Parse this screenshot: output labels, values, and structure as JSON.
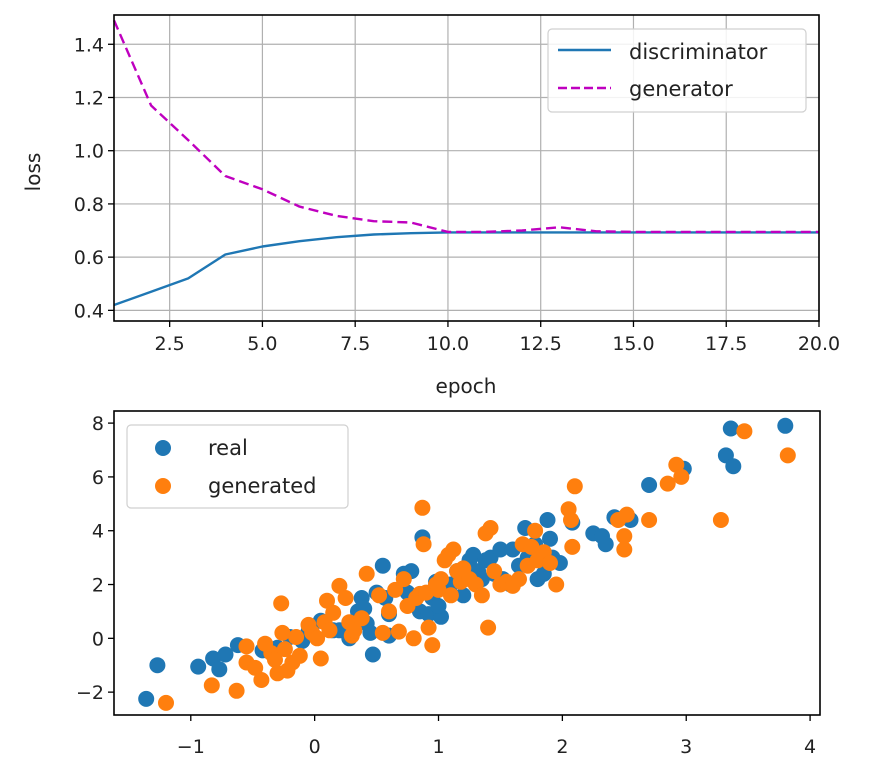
{
  "chart_data": [
    {
      "type": "line",
      "title": "",
      "xlabel": "epoch",
      "ylabel": "loss",
      "xlim": [
        1,
        20
      ],
      "ylim": [
        0.36,
        1.51
      ],
      "grid": true,
      "legend_position": "top-right",
      "x_ticks": [
        2.5,
        5.0,
        7.5,
        10.0,
        12.5,
        15.0,
        17.5,
        20.0
      ],
      "x_tick_labels": [
        "2.5",
        "5.0",
        "7.5",
        "10.0",
        "12.5",
        "15.0",
        "17.5",
        "20.0"
      ],
      "y_ticks": [
        0.4,
        0.6,
        0.8,
        1.0,
        1.2,
        1.4
      ],
      "y_tick_labels": [
        "0.4",
        "0.6",
        "0.8",
        "1.0",
        "1.2",
        "1.4"
      ],
      "x": [
        1,
        2,
        3,
        4,
        5,
        6,
        7,
        8,
        9,
        10,
        11,
        12,
        13,
        14,
        15,
        16,
        17,
        18,
        19,
        20
      ],
      "series": [
        {
          "name": "discriminator",
          "color": "#1f77b4",
          "style": "solid",
          "values": [
            0.42,
            0.47,
            0.52,
            0.61,
            0.64,
            0.66,
            0.675,
            0.685,
            0.69,
            0.693,
            0.693,
            0.693,
            0.693,
            0.693,
            0.693,
            0.693,
            0.693,
            0.693,
            0.693,
            0.693
          ]
        },
        {
          "name": "generator",
          "color": "#bf00bf",
          "style": "dashed",
          "values": [
            1.49,
            1.17,
            1.04,
            0.905,
            0.855,
            0.79,
            0.755,
            0.735,
            0.73,
            0.695,
            0.695,
            0.7,
            0.712,
            0.697,
            0.695,
            0.695,
            0.695,
            0.695,
            0.695,
            0.695
          ]
        }
      ]
    },
    {
      "type": "scatter",
      "title": "",
      "xlabel": "",
      "ylabel": "",
      "xlim": [
        -1.62,
        4.08
      ],
      "ylim": [
        -2.85,
        8.45
      ],
      "grid": false,
      "legend_position": "top-left",
      "x_ticks": [
        -1,
        0,
        1,
        2,
        3,
        4
      ],
      "x_tick_labels": [
        "−1",
        "0",
        "1",
        "2",
        "3",
        "4"
      ],
      "y_ticks": [
        -2,
        0,
        2,
        4,
        6,
        8
      ],
      "y_tick_labels": [
        "−2",
        "0",
        "2",
        "4",
        "6",
        "8"
      ],
      "series": [
        {
          "name": "real",
          "color": "#1f77b4",
          "points": [
            [
              -1.36,
              -2.25
            ],
            [
              -1.27,
              -1.0
            ],
            [
              -0.94,
              -1.05
            ],
            [
              -0.82,
              -0.75
            ],
            [
              -0.77,
              -1.15
            ],
            [
              -0.72,
              -0.6
            ],
            [
              -0.62,
              -0.25
            ],
            [
              -0.42,
              -0.45
            ],
            [
              -0.3,
              -0.35
            ],
            [
              -0.2,
              0.05
            ],
            [
              -0.05,
              0.25
            ],
            [
              0.05,
              0.65
            ],
            [
              0.15,
              0.3
            ],
            [
              0.28,
              0.0
            ],
            [
              0.35,
              1.0
            ],
            [
              0.38,
              1.5
            ],
            [
              0.4,
              1.1
            ],
            [
              0.42,
              0.55
            ],
            [
              0.45,
              0.2
            ],
            [
              0.47,
              -0.6
            ],
            [
              0.55,
              2.7
            ],
            [
              0.57,
              1.5
            ],
            [
              0.6,
              0.9
            ],
            [
              0.72,
              2.4
            ],
            [
              0.75,
              1.7
            ],
            [
              0.78,
              2.5
            ],
            [
              0.85,
              1.0
            ],
            [
              0.87,
              3.75
            ],
            [
              0.92,
              0.9
            ],
            [
              0.95,
              1.5
            ],
            [
              0.98,
              2.1
            ],
            [
              1.02,
              0.8
            ],
            [
              1.05,
              1.9
            ],
            [
              1.1,
              2.0
            ],
            [
              1.15,
              2.5
            ],
            [
              1.2,
              1.6
            ],
            [
              1.25,
              2.9
            ],
            [
              1.28,
              3.1
            ],
            [
              1.32,
              2.5
            ],
            [
              1.35,
              2.2
            ],
            [
              1.38,
              2.9
            ],
            [
              1.42,
              3.0
            ],
            [
              1.45,
              2.4
            ],
            [
              1.5,
              3.3
            ],
            [
              1.52,
              2.2
            ],
            [
              1.58,
              2.0
            ],
            [
              1.65,
              2.7
            ],
            [
              1.7,
              4.1
            ],
            [
              1.72,
              3.0
            ],
            [
              1.78,
              3.5
            ],
            [
              1.8,
              2.2
            ],
            [
              1.85,
              2.4
            ],
            [
              1.88,
              4.4
            ],
            [
              1.9,
              3.7
            ],
            [
              1.92,
              3.0
            ],
            [
              1.98,
              2.8
            ],
            [
              2.08,
              4.3
            ],
            [
              2.25,
              3.9
            ],
            [
              2.32,
              3.8
            ],
            [
              2.35,
              3.5
            ],
            [
              2.42,
              4.5
            ],
            [
              2.55,
              4.4
            ],
            [
              2.7,
              5.7
            ],
            [
              2.98,
              6.3
            ],
            [
              3.32,
              6.8
            ],
            [
              3.36,
              7.8
            ],
            [
              3.38,
              6.4
            ],
            [
              3.8,
              7.9
            ],
            [
              0.2,
              0.3
            ],
            [
              0.6,
              0.1
            ],
            [
              -0.1,
              -0.1
            ],
            [
              1.0,
              1.2
            ],
            [
              1.3,
              2.1
            ],
            [
              0.5,
              1.7
            ],
            [
              1.6,
              3.3
            ]
          ]
        },
        {
          "name": "generated",
          "color": "#ff7f0e",
          "points": [
            [
              -1.2,
              -2.4
            ],
            [
              -0.83,
              -1.75
            ],
            [
              -0.63,
              -1.95
            ],
            [
              -0.55,
              -0.3
            ],
            [
              -0.55,
              -0.9
            ],
            [
              -0.48,
              -1.1
            ],
            [
              -0.43,
              -1.55
            ],
            [
              -0.35,
              -0.55
            ],
            [
              -0.32,
              -0.8
            ],
            [
              -0.3,
              -1.3
            ],
            [
              -0.27,
              1.3
            ],
            [
              -0.26,
              0.2
            ],
            [
              -0.24,
              -0.4
            ],
            [
              -0.22,
              -1.2
            ],
            [
              -0.18,
              -0.9
            ],
            [
              -0.15,
              0.05
            ],
            [
              -0.12,
              -0.65
            ],
            [
              -0.05,
              0.5
            ],
            [
              -0.02,
              0.2
            ],
            [
              0.02,
              0.0
            ],
            [
              0.05,
              -0.75
            ],
            [
              0.08,
              0.6
            ],
            [
              0.12,
              0.3
            ],
            [
              0.15,
              0.95
            ],
            [
              0.2,
              1.95
            ],
            [
              0.25,
              1.5
            ],
            [
              0.28,
              0.6
            ],
            [
              0.3,
              0.1
            ],
            [
              0.32,
              0.3
            ],
            [
              0.42,
              2.4
            ],
            [
              0.52,
              1.6
            ],
            [
              0.55,
              0.2
            ],
            [
              0.6,
              1.0
            ],
            [
              0.65,
              1.8
            ],
            [
              0.68,
              0.25
            ],
            [
              0.72,
              2.2
            ],
            [
              0.75,
              1.2
            ],
            [
              0.8,
              0.0
            ],
            [
              0.82,
              1.5
            ],
            [
              0.85,
              1.65
            ],
            [
              0.87,
              4.85
            ],
            [
              0.88,
              3.5
            ],
            [
              0.9,
              1.7
            ],
            [
              0.92,
              0.4
            ],
            [
              0.95,
              -0.25
            ],
            [
              0.98,
              2.0
            ],
            [
              1.0,
              1.8
            ],
            [
              1.02,
              2.2
            ],
            [
              1.05,
              2.9
            ],
            [
              1.08,
              3.1
            ],
            [
              1.1,
              1.6
            ],
            [
              1.15,
              2.5
            ],
            [
              1.18,
              2.1
            ],
            [
              1.2,
              2.6
            ],
            [
              1.25,
              2.2
            ],
            [
              1.3,
              2.0
            ],
            [
              1.35,
              1.6
            ],
            [
              1.38,
              3.9
            ],
            [
              1.4,
              0.4
            ],
            [
              1.42,
              4.1
            ],
            [
              1.45,
              2.5
            ],
            [
              1.5,
              2.0
            ],
            [
              1.55,
              2.1
            ],
            [
              1.6,
              1.95
            ],
            [
              1.65,
              2.2
            ],
            [
              1.68,
              3.5
            ],
            [
              1.72,
              2.7
            ],
            [
              1.75,
              3.4
            ],
            [
              1.78,
              4.0
            ],
            [
              1.8,
              2.9
            ],
            [
              1.85,
              3.2
            ],
            [
              1.9,
              2.8
            ],
            [
              1.95,
              2.0
            ],
            [
              2.05,
              4.8
            ],
            [
              2.07,
              4.4
            ],
            [
              2.08,
              3.4
            ],
            [
              2.1,
              5.65
            ],
            [
              2.45,
              4.4
            ],
            [
              2.5,
              3.8
            ],
            [
              2.5,
              3.3
            ],
            [
              2.52,
              4.6
            ],
            [
              2.7,
              4.4
            ],
            [
              2.85,
              5.75
            ],
            [
              2.92,
              6.45
            ],
            [
              2.96,
              6.0
            ],
            [
              3.28,
              4.4
            ],
            [
              3.47,
              7.7
            ],
            [
              3.82,
              6.8
            ],
            [
              0.38,
              0.75
            ],
            [
              1.12,
              3.3
            ],
            [
              0.1,
              1.4
            ],
            [
              -0.4,
              -0.2
            ]
          ]
        }
      ]
    }
  ]
}
